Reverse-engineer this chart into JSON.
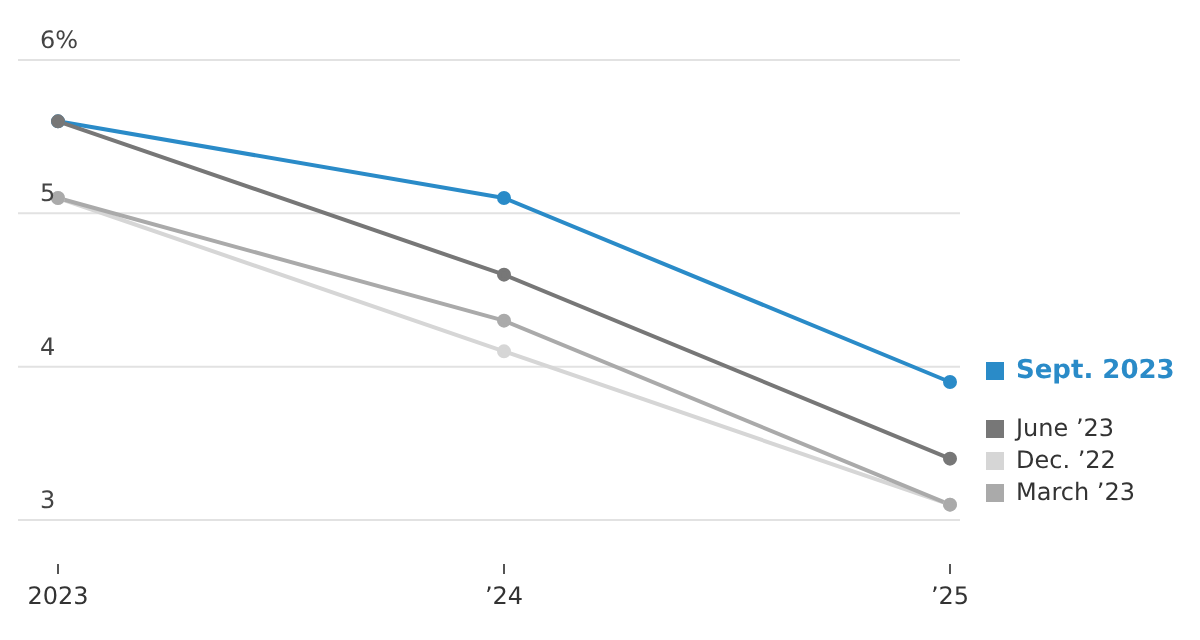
{
  "chart_data": {
    "type": "line",
    "categories": [
      "2023",
      "’24",
      "’25"
    ],
    "series": [
      {
        "name": "Sept. 2023",
        "color": "#2a8bc8",
        "values": [
          5.6,
          5.1,
          3.9
        ]
      },
      {
        "name": "June ’23",
        "color": "#777777",
        "values": [
          5.6,
          4.6,
          3.4
        ]
      },
      {
        "name": "Dec. ’22",
        "color": "#d6d6d6",
        "values": [
          5.1,
          4.1,
          3.1
        ]
      },
      {
        "name": "March ’23",
        "color": "#aaaaaa",
        "values": [
          5.1,
          4.3,
          3.1
        ]
      }
    ],
    "ylim": [
      3,
      6
    ],
    "yticks": [
      {
        "value": 3,
        "label": "3"
      },
      {
        "value": 4,
        "label": "4"
      },
      {
        "value": 5,
        "label": "5"
      },
      {
        "value": 6,
        "label": "6%"
      }
    ],
    "grid": "y",
    "legend": "right",
    "marker": "circle"
  }
}
